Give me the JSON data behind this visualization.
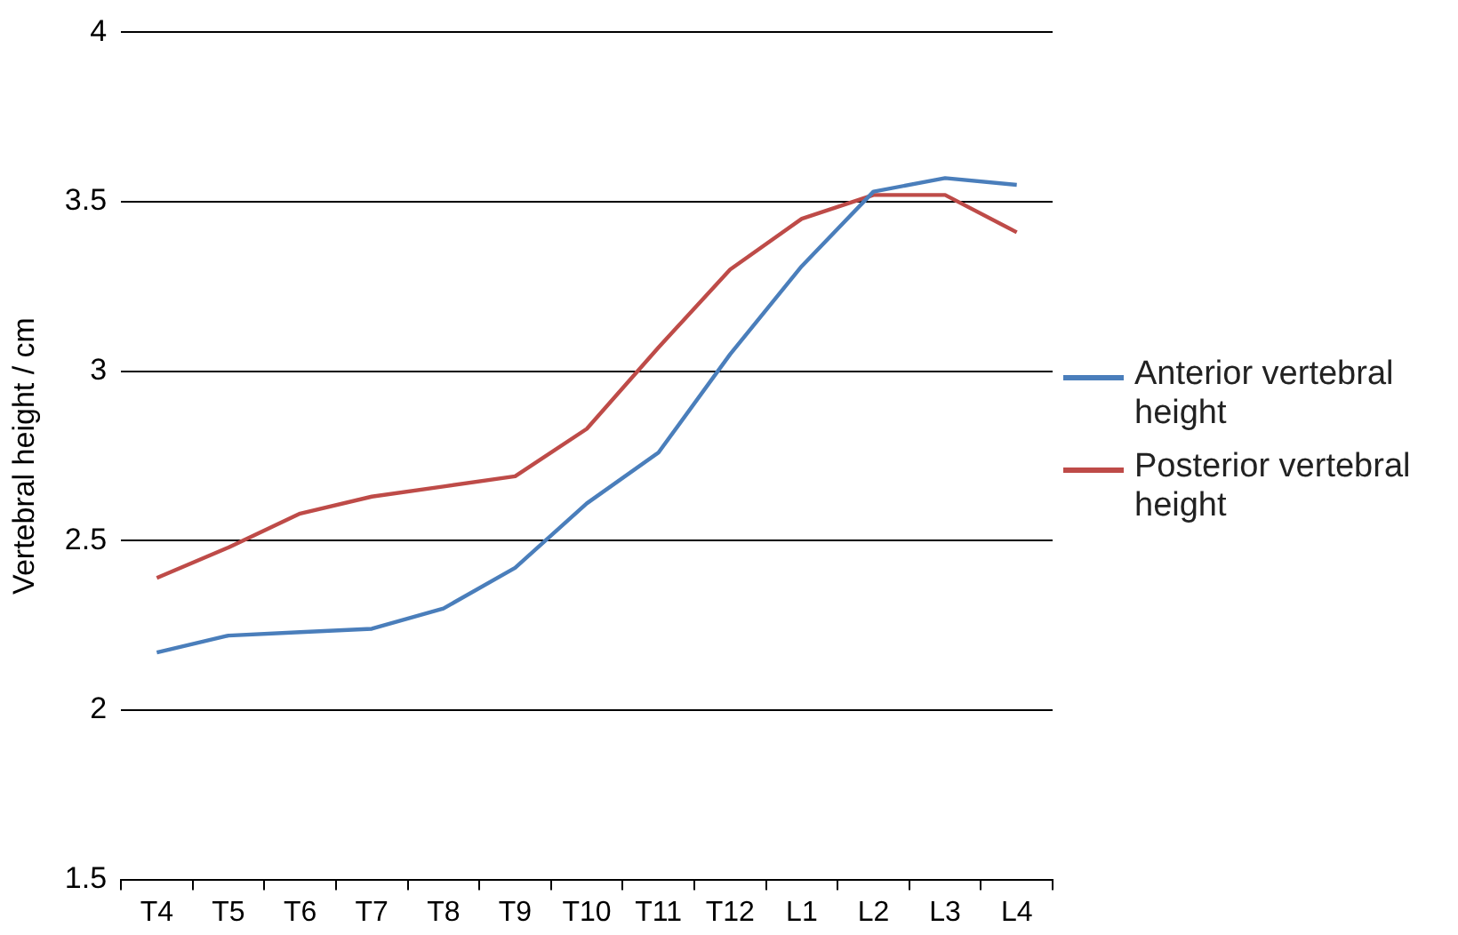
{
  "chart_data": {
    "type": "line",
    "ylabel": "Vertebral height / cm",
    "categories": [
      "T4",
      "T5",
      "T6",
      "T7",
      "T8",
      "T9",
      "T10",
      "T11",
      "T12",
      "L1",
      "L2",
      "L3",
      "L4"
    ],
    "series": [
      {
        "name": "Anterior vertebral height",
        "color": "#4a7ebb",
        "values": [
          2.17,
          2.22,
          2.23,
          2.24,
          2.3,
          2.42,
          2.61,
          2.76,
          3.05,
          3.31,
          3.53,
          3.57,
          3.55
        ]
      },
      {
        "name": "Posterior vertebral height",
        "color": "#be4b48",
        "values": [
          2.39,
          2.48,
          2.58,
          2.63,
          2.66,
          2.69,
          2.83,
          3.07,
          3.3,
          3.45,
          3.52,
          3.52,
          3.41
        ]
      }
    ],
    "ylim": [
      1.5,
      4
    ],
    "yticks": [
      1.5,
      2,
      2.5,
      3,
      3.5,
      4
    ],
    "grid": "y",
    "legend": "right",
    "marker": "none",
    "line_style": "solid"
  }
}
